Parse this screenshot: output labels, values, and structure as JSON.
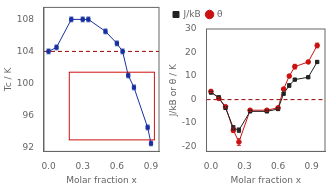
{
  "chart_data": [
    {
      "type": "line",
      "x_label": "Molar fraction x",
      "y_label": "Tc / K",
      "x": [
        0.0,
        0.07,
        0.2,
        0.3,
        0.35,
        0.5,
        0.6,
        0.65,
        0.7,
        0.75,
        0.87,
        0.9
      ],
      "series": [
        {
          "color": "#1830a0",
          "marker": "square",
          "line_style": "solid",
          "values": [
            104.0,
            104.5,
            108.0,
            108.0,
            108.0,
            106.5,
            105.0,
            104.0,
            101.0,
            99.5,
            94.5,
            92.5
          ],
          "yerr": [
            0.3,
            0.3,
            0.3,
            0.3,
            0.3,
            0.3,
            0.3,
            0.3,
            0.3,
            0.3,
            0.3,
            0.3
          ]
        }
      ],
      "hline": {
        "value": 104.0,
        "color": "#990000",
        "line_style": "dashed"
      },
      "box": {
        "x": [
          0.1822,
          0.9296
        ],
        "y": [
          92.94,
          101.4
        ],
        "color": "#cc1111"
      },
      "xlim": [
        -0.04,
        0.97
      ],
      "xticks": [
        {
          "value": 0.0,
          "label": "0.0"
        },
        0.3,
        0.6,
        0.9
      ],
      "ylim": [
        91.5,
        109.5
      ],
      "yticks": [
        92,
        96,
        100,
        104,
        108
      ],
      "grid": false
    },
    {
      "type": "line",
      "x_label": "Molar fraction x",
      "y_label": "J/kB or θ / K",
      "x": [
        0.0,
        0.07,
        0.13,
        0.2,
        0.25,
        0.35,
        0.5,
        0.6,
        0.65,
        0.7,
        0.75,
        0.87,
        0.95
      ],
      "series": [
        {
          "name": "J/kB",
          "color": "#222222",
          "marker": "square",
          "line_style": "solid",
          "values": [
            3.0,
            1.0,
            -3.5,
            -12.0,
            -13.0,
            -5.0,
            -5.0,
            -4.0,
            2.5,
            6.0,
            8.5,
            9.5,
            16.0
          ],
          "yerr": [
            0.5,
            0.5,
            0.5,
            1.0,
            1.0,
            0.5,
            0.5,
            0.5,
            0.5,
            0.8,
            0.5,
            0.5,
            0.5
          ]
        },
        {
          "name": "θ",
          "color": "#cc1111",
          "marker": "circle",
          "line_style": "solid",
          "values": [
            3.5,
            0.5,
            -3.0,
            -13.0,
            -18.0,
            -4.5,
            -4.5,
            -3.5,
            4.5,
            10.0,
            14.0,
            16.0,
            23.0
          ],
          "yerr": [
            0.5,
            0.5,
            0.5,
            1.0,
            1.5,
            0.5,
            0.5,
            0.5,
            0.5,
            0.5,
            1.0,
            0.5,
            1.0
          ]
        }
      ],
      "hline": {
        "value": 0.0,
        "color": "#990000",
        "line_style": "dashed"
      },
      "xlim": [
        -0.04,
        1.02
      ],
      "xticks": [
        {
          "value": 0.0,
          "label": "0.0"
        },
        0.3,
        0.6,
        0.9
      ],
      "ylim": [
        -22,
        30
      ],
      "yticks": [
        -20,
        -10,
        0,
        10,
        20,
        30
      ],
      "legend": "upper left",
      "grid": false
    }
  ]
}
